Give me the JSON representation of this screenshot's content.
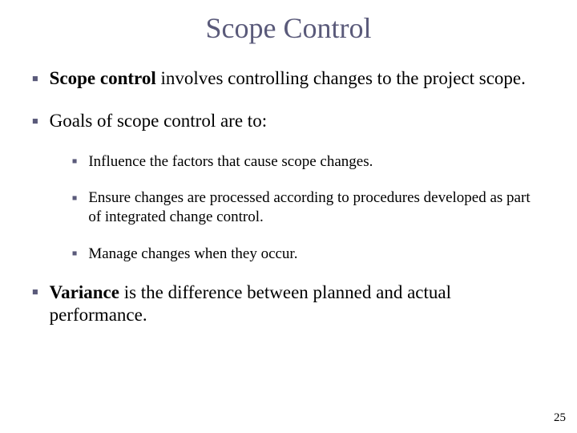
{
  "title": "Scope Control",
  "bullets": {
    "b1_bold": "Scope control",
    "b1_rest": " involves controlling changes to the project scope.",
    "b2": "Goals of scope control are to:",
    "b2a": "Influence the factors that cause scope changes.",
    "b2b": "Ensure changes are processed according to procedures developed as part of integrated change control.",
    "b2c": "Manage changes when they occur.",
    "b3_bold": "Variance",
    "b3_rest": " is the difference between planned and actual performance."
  },
  "page_number": "25",
  "bullet_glyph": "■",
  "colors": {
    "title": "#5a5a7a",
    "bullet": "#5a5a7a",
    "text": "#000000",
    "background": "#ffffff"
  }
}
